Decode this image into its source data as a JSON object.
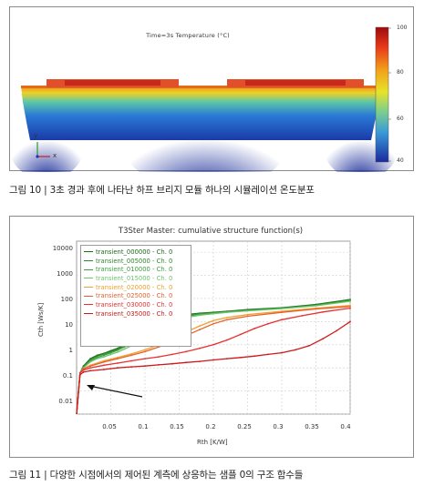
{
  "figure10": {
    "sim_title": "Time=3s Temperature (°C)",
    "colorbar_ticks": [
      "100",
      "80",
      "60",
      "40"
    ],
    "axis_y": "y",
    "axis_x": "x",
    "caption": "그림 10 |  3초 경과 후에 나타난 하프 브리지 모듈 하나의 시뮬레이션 온도분포"
  },
  "figure11": {
    "title": "T3Ster Master: cumulative structure function(s)",
    "ylabel": "Cth [Ws/K]",
    "xlabel": "Rth [K/W]",
    "caption": "그림 11 |  다양한 시점에서의 제어된 계측에 상응하는 샘플 0의 구조 함수들",
    "chart_data": {
      "type": "line",
      "title": "T3Ster Master: cumulative structure function(s)",
      "xlabel": "Rth [K/W]",
      "ylabel": "Cth [Ws/K]",
      "xlim": [
        0,
        0.4
      ],
      "ylim": [
        0.001,
        30000
      ],
      "y_scale": "log",
      "x_ticks": [
        "0.05",
        "0.1",
        "0.15",
        "0.2",
        "0.25",
        "0.3",
        "0.35",
        "0.4"
      ],
      "y_ticks": [
        "10000",
        "1000",
        "100",
        "10",
        "1",
        "0.1",
        "0.01"
      ],
      "grid": true,
      "legend_position": "top-left",
      "annotation": "arrow pointing to curve split near Rth 0.01",
      "series": [
        {
          "name": "transient_000000 - Ch. 0",
          "color": "#1a6b1a",
          "x": [
            0,
            0.005,
            0.01,
            0.02,
            0.03,
            0.04,
            0.05,
            0.06,
            0.07,
            0.08,
            0.09,
            0.1,
            0.11,
            0.12,
            0.13,
            0.14,
            0.16,
            0.18,
            0.2,
            0.22,
            0.25,
            0.3,
            0.35,
            0.4
          ],
          "y": [
            0.001,
            0.06,
            0.12,
            0.25,
            0.35,
            0.42,
            0.55,
            0.7,
            1.0,
            1.5,
            2.2,
            3.5,
            5.5,
            9,
            12,
            15,
            20,
            23,
            25,
            28,
            33,
            40,
            55,
            90
          ]
        },
        {
          "name": "transient_005000 - Ch. 0",
          "color": "#2e8a2e",
          "x": [
            0,
            0.005,
            0.01,
            0.02,
            0.03,
            0.04,
            0.05,
            0.06,
            0.07,
            0.08,
            0.09,
            0.1,
            0.11,
            0.12,
            0.13,
            0.14,
            0.16,
            0.18,
            0.2,
            0.22,
            0.25,
            0.3,
            0.35,
            0.4
          ],
          "y": [
            0.001,
            0.06,
            0.11,
            0.23,
            0.32,
            0.4,
            0.5,
            0.65,
            0.9,
            1.3,
            2.0,
            3.2,
            5,
            8,
            11,
            14,
            19,
            22,
            24,
            27,
            31,
            38,
            52,
            85
          ]
        },
        {
          "name": "transient_010000 - Ch. 0",
          "color": "#3e9e3e",
          "x": [
            0,
            0.005,
            0.01,
            0.02,
            0.03,
            0.04,
            0.05,
            0.06,
            0.07,
            0.08,
            0.09,
            0.1,
            0.11,
            0.12,
            0.13,
            0.14,
            0.16,
            0.18,
            0.2,
            0.22,
            0.25,
            0.3,
            0.35,
            0.4
          ],
          "y": [
            0.001,
            0.06,
            0.1,
            0.2,
            0.28,
            0.35,
            0.45,
            0.58,
            0.8,
            1.1,
            1.7,
            2.8,
            4.5,
            7,
            10,
            13,
            17,
            21,
            23,
            26,
            30,
            37,
            50,
            80
          ]
        },
        {
          "name": "transient_015000 - Ch. 0",
          "color": "#6fc46f",
          "x": [
            0,
            0.005,
            0.01,
            0.02,
            0.03,
            0.04,
            0.05,
            0.06,
            0.07,
            0.08,
            0.09,
            0.1,
            0.11,
            0.12,
            0.13,
            0.14,
            0.16,
            0.18,
            0.2,
            0.22,
            0.25,
            0.3,
            0.35,
            0.4
          ],
          "y": [
            0.001,
            0.06,
            0.1,
            0.18,
            0.25,
            0.3,
            0.38,
            0.48,
            0.65,
            0.9,
            1.3,
            2.0,
            3.2,
            5,
            7.5,
            10,
            15,
            19,
            22,
            25,
            29,
            36,
            48,
            75
          ]
        },
        {
          "name": "transient_020000 - Ch. 0",
          "color": "#f0a030",
          "x": [
            0,
            0.005,
            0.01,
            0.02,
            0.04,
            0.06,
            0.08,
            0.1,
            0.12,
            0.14,
            0.16,
            0.18,
            0.2,
            0.22,
            0.25,
            0.3,
            0.35,
            0.4
          ],
          "y": [
            0.001,
            0.06,
            0.09,
            0.13,
            0.2,
            0.28,
            0.4,
            0.6,
            1.0,
            1.8,
            3.5,
            6.5,
            11,
            15,
            20,
            28,
            38,
            50
          ]
        },
        {
          "name": "transient_025000 - Ch. 0",
          "color": "#e8602a",
          "x": [
            0,
            0.005,
            0.01,
            0.02,
            0.04,
            0.06,
            0.08,
            0.1,
            0.12,
            0.14,
            0.16,
            0.18,
            0.2,
            0.22,
            0.25,
            0.3,
            0.35,
            0.4
          ],
          "y": [
            0.001,
            0.06,
            0.09,
            0.12,
            0.18,
            0.25,
            0.35,
            0.5,
            0.8,
            1.3,
            2.5,
            4.5,
            8,
            12,
            17,
            25,
            35,
            45
          ]
        },
        {
          "name": "transient_030000 - Ch. 0",
          "color": "#e83030",
          "x": [
            0,
            0.005,
            0.01,
            0.02,
            0.04,
            0.06,
            0.08,
            0.1,
            0.12,
            0.14,
            0.16,
            0.18,
            0.2,
            0.22,
            0.24,
            0.26,
            0.28,
            0.3,
            0.33,
            0.36,
            0.4
          ],
          "y": [
            0.001,
            0.06,
            0.08,
            0.1,
            0.13,
            0.16,
            0.2,
            0.25,
            0.3,
            0.38,
            0.5,
            0.7,
            1.0,
            1.6,
            2.8,
            5,
            8,
            12,
            18,
            26,
            38
          ]
        },
        {
          "name": "transient_035000 - Ch. 0",
          "color": "#cc1a1a",
          "x": [
            0,
            0.005,
            0.01,
            0.02,
            0.04,
            0.06,
            0.08,
            0.1,
            0.12,
            0.14,
            0.16,
            0.18,
            0.2,
            0.22,
            0.24,
            0.26,
            0.28,
            0.3,
            0.32,
            0.34,
            0.36,
            0.38,
            0.4
          ],
          "y": [
            0.001,
            0.05,
            0.065,
            0.075,
            0.085,
            0.1,
            0.11,
            0.12,
            0.135,
            0.15,
            0.17,
            0.19,
            0.22,
            0.25,
            0.28,
            0.32,
            0.38,
            0.45,
            0.6,
            0.9,
            1.8,
            4,
            10
          ]
        }
      ]
    }
  }
}
